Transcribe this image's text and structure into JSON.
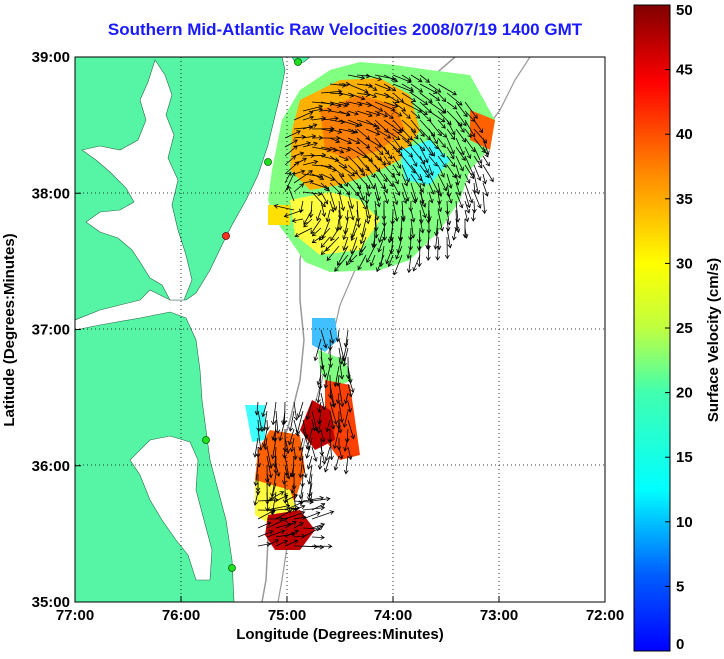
{
  "title": "Southern Mid-Atlantic Raw Velocities 2008/07/19 1400 GMT",
  "map": {
    "x_axis_label": "Longitude (Degrees:Minutes)",
    "y_axis_label": "Latitude (Degrees:Minutes)",
    "lon_range": [
      -77,
      -72
    ],
    "lat_range": [
      35,
      39
    ],
    "x_ticks": [
      "77:00",
      "76:00",
      "75:00",
      "74:00",
      "73:00",
      "72:00"
    ],
    "y_ticks": [
      "39:00",
      "38:00",
      "37:00",
      "36:00",
      "35:00"
    ],
    "land_color": "#55f5a5",
    "grid": "dotted"
  },
  "colorbar": {
    "label": "Surface Velocity (cm/s)",
    "range": [
      0,
      50
    ],
    "ticks": [
      "50",
      "45",
      "40",
      "35",
      "30",
      "25",
      "20",
      "15",
      "10",
      "5",
      "0"
    ]
  }
}
